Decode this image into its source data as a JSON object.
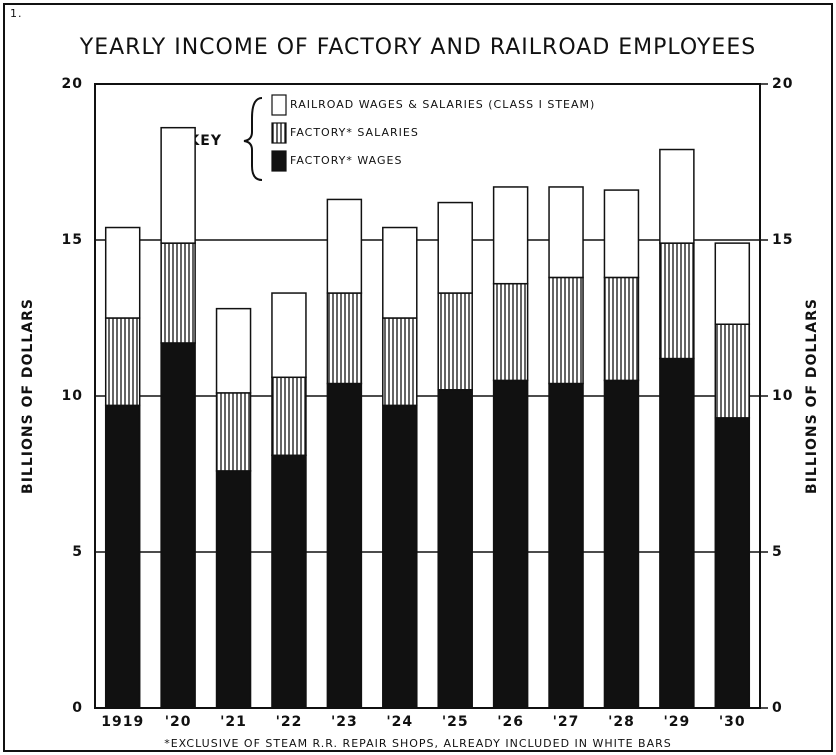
{
  "chart_data": {
    "type": "stacked-bar",
    "number": "1.",
    "title": "YEARLY INCOME OF FACTORY AND RAILROAD EMPLOYEES",
    "ylabel": "BILLIONS OF DOLLARS",
    "y2label": "BILLIONS OF DOLLARS",
    "legend_title": "KEY",
    "footnote": "*EXCLUSIVE OF STEAM R.R. REPAIR SHOPS, ALREADY INCLUDED IN WHITE BARS",
    "categories": [
      "1919",
      "'20",
      "'21",
      "'22",
      "'23",
      "'24",
      "'25",
      "'26",
      "'27",
      "'28",
      "'29",
      "'30"
    ],
    "series": [
      {
        "name": "FACTORY* WAGES",
        "color": "#111111",
        "hatch": false,
        "values": [
          9.7,
          11.7,
          7.6,
          8.1,
          10.4,
          9.7,
          10.2,
          10.5,
          10.4,
          10.5,
          11.2,
          9.3
        ]
      },
      {
        "name": "FACTORY* SALARIES",
        "color": "#ffffff",
        "hatch": true,
        "values": [
          2.8,
          3.2,
          2.5,
          2.5,
          2.9,
          2.8,
          3.1,
          3.1,
          3.4,
          3.3,
          3.7,
          3.0
        ]
      },
      {
        "name": "RAILROAD WAGES & SALARIES (CLASS I STEAM)",
        "color": "#ffffff",
        "hatch": false,
        "values": [
          2.9,
          3.7,
          2.7,
          2.7,
          3.0,
          2.9,
          2.9,
          3.1,
          2.9,
          2.8,
          3.0,
          2.6
        ]
      }
    ],
    "ylim": [
      0,
      20
    ],
    "yticks": [
      0,
      5,
      10,
      15,
      20
    ],
    "y2lim": [
      0,
      20
    ],
    "y2ticks": [
      0,
      5,
      10,
      15,
      20
    ],
    "grid": true
  }
}
